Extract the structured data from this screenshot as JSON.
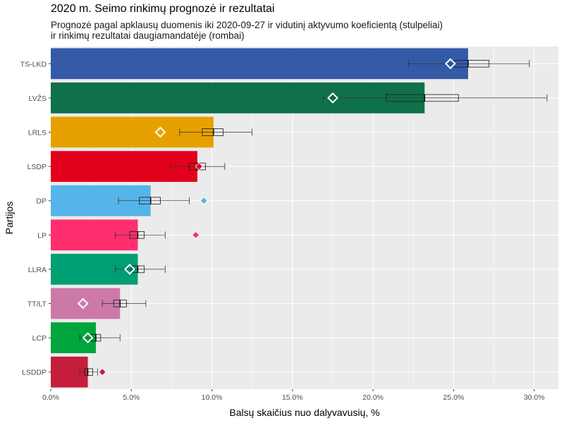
{
  "chart_data": {
    "type": "bar",
    "title": "2020 m. Seimo rinkimų prognozė ir rezultatai",
    "subtitle_line1": "Prognozė pagal apklausų duomenis iki 2020-09-27 ir vidutinį aktyvumo koeficientą (stulpeliai)",
    "subtitle_line2": "ir rinkimų rezultatai daugiamandatėje (rombai)",
    "xlabel": "Balsų skaičius nuo dalyvavusių, %",
    "ylabel": "Partijos",
    "xlim": [
      0,
      31.5
    ],
    "x_ticks": [
      0,
      5,
      10,
      15,
      20,
      25,
      30
    ],
    "x_tick_labels": [
      "0.0%",
      "5.0%",
      "10.0%",
      "15.0%",
      "20.0%",
      "25.0%",
      "30.0%"
    ],
    "grid": true,
    "categories": [
      "TS-LKD",
      "LVŽS",
      "LRLS",
      "LSDP",
      "DP",
      "LP",
      "LLRA",
      "TT/LT",
      "LCP",
      "LSDDP"
    ],
    "series": [
      {
        "name": "Prognozė",
        "values": [
          25.9,
          23.2,
          10.1,
          9.1,
          6.2,
          5.4,
          5.4,
          4.3,
          2.8,
          2.3
        ]
      },
      {
        "name": "Rezultatas",
        "values": [
          24.8,
          17.5,
          6.8,
          9.2,
          9.5,
          9.0,
          4.9,
          2.0,
          2.3,
          3.2
        ]
      }
    ],
    "boxes": [
      {
        "q1": 25.0,
        "median": 25.9,
        "q3": 27.2,
        "whisker_low": 22.2,
        "whisker_high": 29.7
      },
      {
        "q1": 20.8,
        "median": 23.2,
        "q3": 25.3,
        "whisker_low": 16.9,
        "whisker_high": 30.8
      },
      {
        "q1": 9.4,
        "median": 10.1,
        "q3": 10.7,
        "whisker_low": 8.0,
        "whisker_high": 12.5
      },
      {
        "q1": 8.6,
        "median": 9.1,
        "q3": 9.6,
        "whisker_low": 7.4,
        "whisker_high": 10.8
      },
      {
        "q1": 5.5,
        "median": 6.2,
        "q3": 6.8,
        "whisker_low": 4.2,
        "whisker_high": 8.6
      },
      {
        "q1": 4.9,
        "median": 5.4,
        "q3": 5.8,
        "whisker_low": 4.0,
        "whisker_high": 7.1
      },
      {
        "q1": 5.0,
        "median": 5.4,
        "q3": 5.8,
        "whisker_low": 4.0,
        "whisker_high": 7.1
      },
      {
        "q1": 3.9,
        "median": 4.3,
        "q3": 4.7,
        "whisker_low": 3.2,
        "whisker_high": 5.9
      },
      {
        "q1": 2.5,
        "median": 2.8,
        "q3": 3.1,
        "whisker_low": 1.8,
        "whisker_high": 4.3
      },
      {
        "q1": 2.1,
        "median": 2.3,
        "q3": 2.6,
        "whisker_low": 1.8,
        "whisker_high": 2.9
      }
    ],
    "bar_colors": [
      "#3459a6",
      "#0f7149",
      "#e6a100",
      "#e3001b",
      "#55b4e9",
      "#ff2f6f",
      "#009e73",
      "#cc79a7",
      "#00a53d",
      "#c41e3a"
    ],
    "marker_styles": [
      "hollow",
      "hollow",
      "hollow",
      "filled",
      "filled",
      "filled",
      "hollow",
      "hollow",
      "hollow",
      "filled"
    ]
  }
}
